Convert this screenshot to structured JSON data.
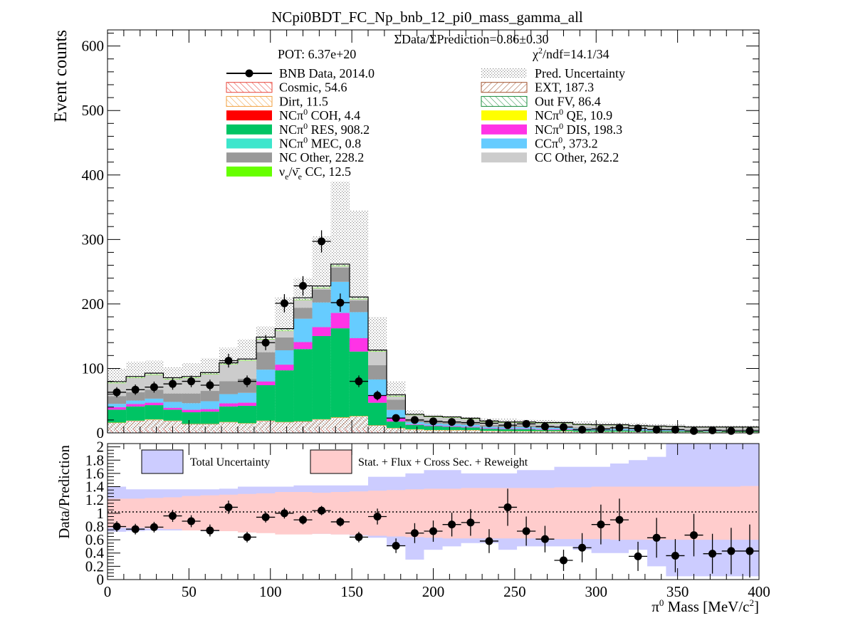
{
  "chart_data": [
    {
      "type": "bar",
      "title": "NCpi0BDT_FC_Np_bnb_12_pi0_mass_gamma_all",
      "ylabel": "Event counts",
      "xlim": [
        0,
        400
      ],
      "ylim": [
        0,
        625
      ],
      "yticks": [
        "0",
        "100",
        "200",
        "300",
        "400",
        "500",
        "600"
      ],
      "bin_edges": [
        0,
        11.4,
        22.9,
        34.3,
        45.7,
        57.1,
        68.6,
        80,
        91.4,
        102.9,
        114.3,
        125.7,
        137.1,
        148.6,
        160,
        171.4,
        182.9,
        194.3,
        205.7,
        217.1,
        228.6,
        240,
        251.4,
        262.9,
        274.3,
        285.7,
        297.1,
        308.6,
        320,
        331.4,
        342.9,
        354.3,
        365.7,
        377.1,
        388.6,
        400
      ],
      "stack_layers": [
        {
          "name": "Cosmic",
          "color": "#e8443a",
          "hatch": true,
          "values": [
            5,
            6,
            7,
            7,
            4,
            4,
            5,
            4,
            5,
            4,
            5,
            6,
            7,
            7,
            3,
            2,
            1,
            1,
            1,
            1,
            1,
            0.5,
            0.5,
            0.5,
            0.5,
            0.3,
            0.3,
            0.3,
            0.3,
            0.2,
            0.2,
            0.2,
            0.2,
            0.2,
            0.2
          ]
        },
        {
          "name": "EXT",
          "color": "#a0522d",
          "hatch": true,
          "values": [
            10,
            12,
            13,
            11,
            9,
            9,
            11,
            10,
            13,
            12,
            12,
            14,
            16,
            18,
            8,
            5,
            4,
            3,
            3,
            3,
            2,
            2,
            2,
            2,
            2,
            1.5,
            1.5,
            1.5,
            1.5,
            1,
            1,
            1,
            1,
            1,
            1
          ]
        },
        {
          "name": "Dirt",
          "color": "#f0a040",
          "hatch": true,
          "values": [
            0.5,
            0.5,
            0.5,
            0.5,
            0.5,
            0.5,
            0.5,
            0.5,
            0.5,
            0.5,
            0.5,
            0.5,
            0.5,
            0.5,
            0.3,
            0.3,
            0.2,
            0.2,
            0.2,
            0.2,
            0.1,
            0.1,
            0.1,
            0.1,
            0.1,
            0.1,
            0.1,
            0.1,
            0.1,
            0.1,
            0.1,
            0.1,
            0.1,
            0.1,
            0.1
          ]
        },
        {
          "name": "NC&#960;0 COH",
          "color": "#ff0000",
          "values": [
            0.2,
            0.2,
            0.2,
            0.2,
            0.2,
            0.2,
            0.2,
            0.2,
            0.2,
            0.2,
            0.2,
            0.3,
            0.3,
            0.3,
            0.2,
            0.1,
            0.1,
            0.1,
            0.1,
            0.1,
            0.1,
            0.1,
            0.1,
            0.1,
            0.1,
            0,
            0,
            0,
            0,
            0,
            0,
            0,
            0,
            0,
            0
          ]
        },
        {
          "name": "NC&#960;0 QE",
          "color": "#ffff00",
          "values": [
            0.3,
            0.3,
            0.3,
            0.3,
            0.3,
            0.3,
            0.3,
            0.3,
            0.3,
            0.3,
            0.3,
            0.4,
            0.4,
            0.4,
            0.3,
            0.2,
            0.2,
            0.2,
            0.2,
            0.2,
            0.1,
            0.1,
            0.1,
            0.1,
            0.1,
            0.1,
            0.1,
            0.1,
            0.1,
            0.1,
            0.1,
            0.1,
            0.1,
            0.1,
            0.1
          ]
        },
        {
          "name": "NC&#960;0 RES",
          "color": "#00c464",
          "values": [
            20,
            22,
            22,
            17,
            18,
            19,
            24,
            27,
            55,
            80,
            112,
            129,
            138,
            100,
            35,
            10,
            7,
            6,
            5,
            4,
            3,
            3,
            3,
            2,
            2,
            2,
            2,
            2,
            1.5,
            1.5,
            1.5,
            1,
            1,
            1,
            1
          ]
        },
        {
          "name": "NC&#960;0 DIS",
          "color": "#ff33e6",
          "values": [
            4,
            4,
            4,
            3,
            4,
            4,
            5,
            5,
            6,
            9,
            11,
            14,
            24,
            21,
            11,
            5,
            1,
            1,
            1,
            1,
            1,
            1,
            1,
            1,
            1,
            0.5,
            0.5,
            0.5,
            0.5,
            0.5,
            0.5,
            0.5,
            0.5,
            0.5,
            0.5
          ]
        },
        {
          "name": "NC&#960;0 MEC",
          "color": "#3de6cc",
          "values": [
            0.1,
            0.1,
            0.1,
            0.1,
            0.1,
            0.1,
            0.1,
            0.1,
            0.1,
            0.1,
            0.1,
            0.1,
            0.1,
            0.1,
            0.1,
            0,
            0,
            0,
            0,
            0,
            0,
            0,
            0,
            0,
            0,
            0,
            0,
            0,
            0,
            0,
            0,
            0,
            0,
            0,
            0
          ]
        },
        {
          "name": "CC&#960;0",
          "color": "#66ccff",
          "values": [
            5,
            5,
            6,
            9,
            10,
            12,
            14,
            15,
            18,
            22,
            36,
            38,
            48,
            40,
            25,
            13,
            3,
            3,
            3,
            3,
            2,
            2,
            2,
            2,
            2,
            2,
            1.5,
            1.5,
            1.5,
            1.5,
            1,
            1,
            1,
            1,
            1
          ]
        },
        {
          "name": "NC Other",
          "color": "#999999",
          "values": [
            12,
            13,
            14,
            13,
            15,
            16,
            20,
            22,
            27,
            20,
            17,
            20,
            22,
            18,
            22,
            16,
            5,
            4,
            4,
            4,
            3,
            3,
            3,
            3,
            3,
            2,
            2,
            2,
            2,
            2,
            2,
            1.5,
            1.5,
            1.5,
            1.5
          ]
        },
        {
          "name": "CC Other",
          "color": "#cccccc",
          "values": [
            20,
            22,
            23,
            22,
            24,
            26,
            26,
            28,
            20,
            10,
            12,
            2,
            2,
            2,
            21,
            5,
            6,
            6,
            6,
            5,
            5,
            4,
            4,
            4,
            4,
            4,
            4,
            4,
            3,
            3,
            3,
            3,
            3,
            3,
            3
          ]
        },
        {
          "name": "&#957;e/&#957;&#772;e CC",
          "color": "#66ff00",
          "values": [
            0.5,
            0.5,
            0.5,
            0.5,
            0.5,
            0.5,
            0.5,
            0.5,
            0.5,
            0.5,
            0.5,
            0.5,
            0.5,
            0.5,
            0.5,
            0.5,
            0.3,
            0.3,
            0.3,
            0.3,
            0.2,
            0.2,
            0.2,
            0.2,
            0.2,
            0.2,
            0.2,
            0.2,
            0.2,
            0.2,
            0.2,
            0.2,
            0.2,
            0.2,
            0.2
          ]
        },
        {
          "name": "Out FV",
          "color": "#1a8c3c",
          "hatch": true,
          "values": [
            2,
            2,
            2,
            2,
            2,
            2,
            2,
            2,
            3,
            3,
            3,
            3,
            3,
            3,
            2,
            2,
            1,
            1,
            1,
            1,
            1,
            1,
            1,
            1,
            1,
            0.5,
            0.5,
            0.5,
            0.5,
            0.5,
            0.5,
            0.5,
            0.5,
            0.5,
            0.5
          ]
        }
      ],
      "uncertainty_top": [
        100,
        110,
        112,
        102,
        108,
        116,
        132,
        145,
        165,
        210,
        240,
        305,
        390,
        345,
        180,
        80,
        35,
        28,
        26,
        25,
        23,
        22,
        21,
        20,
        19,
        18,
        17,
        16,
        15,
        14,
        13,
        12,
        12,
        11,
        11
      ],
      "data_points": {
        "x": [
          5.7,
          17.1,
          28.6,
          40,
          51.4,
          62.9,
          74.3,
          85.7,
          97.1,
          108.6,
          120,
          131.4,
          142.9,
          154.3,
          165.7,
          177.1,
          188.6,
          200,
          211.4,
          222.9,
          234.3,
          245.7,
          257.1,
          268.6,
          280,
          291.4,
          302.9,
          314.3,
          325.7,
          337.1,
          348.6,
          360,
          371.4,
          382.9,
          394.3
        ],
        "y": [
          63,
          67,
          71,
          76,
          80,
          74,
          112,
          80,
          140,
          201,
          228,
          297,
          202,
          80,
          58,
          23,
          20,
          18,
          17,
          16,
          15,
          12,
          14,
          10,
          9,
          5,
          6,
          8,
          7,
          5,
          5,
          3,
          4,
          3,
          3
        ],
        "err": [
          8,
          8,
          8.5,
          9,
          9,
          8.6,
          10.6,
          9,
          11.8,
          14.2,
          15.1,
          17.2,
          14.2,
          9,
          7.6,
          4.8,
          4.5,
          4.2,
          4.1,
          4,
          3.9,
          3.5,
          3.7,
          3.2,
          3,
          2.2,
          2.4,
          2.8,
          2.6,
          2.2,
          2.2,
          1.7,
          2,
          1.7,
          1.7
        ]
      },
      "legend_header": {
        "ratio_text": "ΣData/ΣPrediction=0.86±0.30",
        "pot": "POT: 6.37e+20",
        "chi2_main": "χ",
        "chi2_sup": "2",
        "chi2_rest": "/ndf=14.1/34"
      },
      "legend": {
        "left": [
          {
            "label": "BNB Data, 2014.0",
            "kind": "marker"
          },
          {
            "label": "Cosmic, 54.6",
            "kind": "hatch",
            "color": "#e8443a"
          },
          {
            "label": "Dirt, 11.5",
            "kind": "hatch",
            "color": "#f0a040"
          },
          {
            "pre": "NCπ",
            "sup": "0",
            "post": " COH,  4.4",
            "kind": "fill",
            "color": "#ff0000"
          },
          {
            "pre": "NCπ",
            "sup": "0",
            "post": " RES,  908.2",
            "kind": "fill",
            "color": "#00c464"
          },
          {
            "pre": "NCπ",
            "sup": "0",
            "post": " MEC,  0.8",
            "kind": "fill",
            "color": "#3de6cc"
          },
          {
            "label": "NC Other, 228.2",
            "kind": "fill",
            "color": "#999999"
          },
          {
            "pre": "ν",
            "sub": "e",
            "mid": "/ν̄",
            "sub2": "e",
            "post": " CC, 12.5",
            "kind": "fill",
            "color": "#66ff00"
          }
        ],
        "right": [
          {
            "label": "Pred. Uncertainty",
            "kind": "dots"
          },
          {
            "label": "EXT, 187.3",
            "kind": "hatch",
            "color": "#a0522d"
          },
          {
            "label": "Out FV, 86.4",
            "kind": "hatch",
            "color": "#1a8c3c"
          },
          {
            "pre": "NCπ",
            "sup": "0",
            "post": " QE,  10.9",
            "kind": "fill",
            "color": "#ffff00"
          },
          {
            "pre": "NCπ",
            "sup": "0",
            "post": " DIS,  198.3",
            "kind": "fill",
            "color": "#ff33e6"
          },
          {
            "pre": "CCπ",
            "sup": "0",
            "post": ", 373.2",
            "kind": "fill",
            "color": "#66ccff"
          },
          {
            "label": "CC Other, 262.2",
            "kind": "fill",
            "color": "#cccccc"
          }
        ]
      }
    },
    {
      "type": "scatter",
      "ylabel": "Data/Prediction",
      "xlim": [
        0,
        400
      ],
      "ylim": [
        0,
        2.05
      ],
      "yticks": [
        "0",
        "0.2",
        "0.4",
        "0.6",
        "0.8",
        "1",
        "1.2",
        "1.4",
        "1.6",
        "1.8",
        "2"
      ],
      "xticks": [
        "0",
        "50",
        "100",
        "150",
        "200",
        "250",
        "300",
        "350",
        "400"
      ],
      "xlabel_pre": "π",
      "xlabel_sup": "0",
      "xlabel_mid": " Mass [MeV/c",
      "xlabel_sup2": "2",
      "xlabel_post": "]",
      "legend": [
        {
          "label": "Total Uncertainty",
          "color": "#ccccff"
        },
        {
          "label": "Stat. + Flux + Cross Sec. + Reweight",
          "color": "#ffcccc"
        }
      ],
      "band_total": {
        "lo": [
          0.72,
          0.73,
          0.74,
          0.74,
          0.74,
          0.73,
          0.73,
          0.72,
          0.71,
          0.7,
          0.7,
          0.69,
          0.68,
          0.66,
          0.63,
          0.5,
          0.3,
          0.45,
          0.5,
          0.55,
          0.55,
          0.45,
          0.5,
          0.5,
          0.5,
          0.45,
          0.4,
          0.4,
          0.45,
          0.2,
          0.05,
          0.05,
          0.05,
          0.05,
          0.05
        ],
        "hi": [
          1.4,
          1.36,
          1.36,
          1.36,
          1.36,
          1.36,
          1.37,
          1.4,
          1.4,
          1.4,
          1.42,
          1.42,
          1.42,
          1.42,
          1.55,
          1.55,
          1.6,
          1.65,
          1.65,
          1.6,
          1.6,
          1.6,
          1.65,
          1.65,
          1.7,
          1.7,
          1.7,
          1.75,
          1.8,
          1.85,
          2.05,
          2.05,
          2.05,
          2.05,
          2.05
        ]
      },
      "band_syst": {
        "lo": [
          0.78,
          0.78,
          0.77,
          0.76,
          0.74,
          0.74,
          0.73,
          0.71,
          0.7,
          0.68,
          0.68,
          0.69,
          0.68,
          0.67,
          0.66,
          0.65,
          0.64,
          0.63,
          0.62,
          0.62,
          0.62,
          0.62,
          0.62,
          0.61,
          0.61,
          0.61,
          0.61,
          0.6,
          0.6,
          0.6,
          0.6,
          0.6,
          0.6,
          0.6,
          0.6
        ],
        "hi": [
          1.22,
          1.22,
          1.23,
          1.24,
          1.26,
          1.27,
          1.28,
          1.29,
          1.3,
          1.32,
          1.32,
          1.31,
          1.32,
          1.33,
          1.34,
          1.35,
          1.36,
          1.37,
          1.37,
          1.38,
          1.38,
          1.38,
          1.38,
          1.38,
          1.39,
          1.39,
          1.4,
          1.4,
          1.4,
          1.4,
          1.4,
          1.4,
          1.4,
          1.4,
          1.41
        ]
      },
      "data_points": {
        "x": [
          5.7,
          17.1,
          28.6,
          40,
          51.4,
          62.9,
          74.3,
          85.7,
          97.1,
          108.6,
          120,
          131.4,
          142.9,
          154.3,
          165.7,
          177.1,
          188.6,
          200,
          211.4,
          222.9,
          234.3,
          245.7,
          257.1,
          268.6,
          280,
          291.4,
          302.9,
          314.3,
          325.7,
          337.1,
          348.6,
          360,
          371.4,
          382.9,
          394.3
        ],
        "y": [
          0.8,
          0.76,
          0.79,
          0.96,
          0.88,
          0.74,
          1.09,
          0.64,
          0.94,
          1.0,
          0.9,
          1.04,
          0.87,
          0.64,
          0.95,
          0.51,
          0.7,
          0.73,
          0.83,
          0.86,
          0.58,
          1.09,
          0.73,
          0.61,
          0.29,
          0.48,
          0.83,
          0.9,
          0.35,
          0.63,
          0.36,
          0.67,
          0.39,
          0.43,
          0.43
        ],
        "err": [
          0.08,
          0.08,
          0.08,
          0.09,
          0.09,
          0.09,
          0.1,
          0.08,
          0.08,
          0.08,
          0.07,
          0.07,
          0.07,
          0.08,
          0.12,
          0.11,
          0.15,
          0.16,
          0.18,
          0.2,
          0.18,
          0.28,
          0.22,
          0.2,
          0.16,
          0.22,
          0.3,
          0.32,
          0.22,
          0.3,
          0.25,
          0.32,
          0.3,
          0.35,
          0.4
        ]
      }
    }
  ]
}
